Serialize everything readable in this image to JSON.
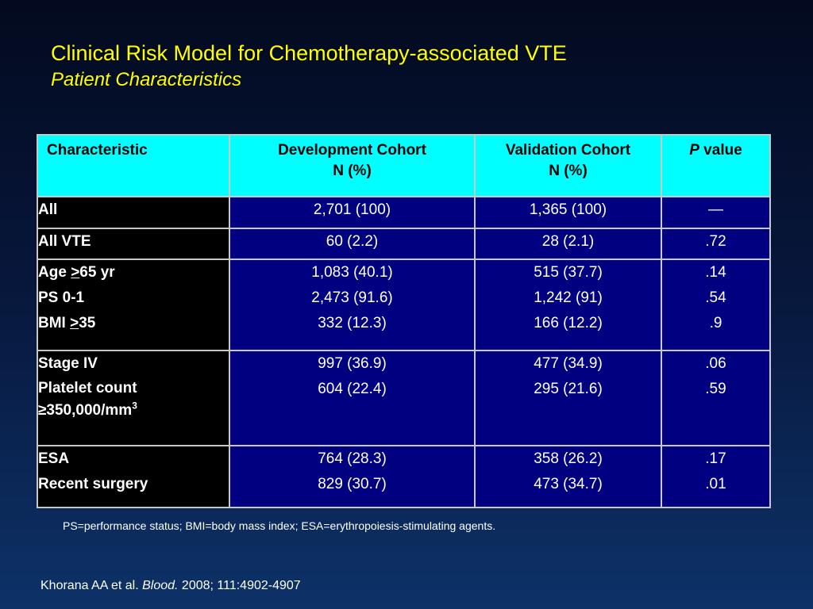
{
  "title": "Clinical Risk Model for Chemotherapy-associated VTE",
  "subtitle": "Patient Characteristics",
  "table": {
    "headers": {
      "characteristic": "Characteristic",
      "dev_line1": "Development Cohort",
      "dev_line2": "N (%)",
      "val_line1": "Validation Cohort",
      "val_line2": "N (%)",
      "p_italic": "P",
      "p_rest": " value"
    },
    "rows": {
      "all": {
        "label": "All",
        "dev": "2,701 (100)",
        "val": "1,365 (100)",
        "p": "—"
      },
      "all_vte": {
        "label": "All VTE",
        "dev": "60 (2.2)",
        "val": "28 (2.1)",
        "p": ".72"
      },
      "age": {
        "label_pre": "Age ",
        "label_sym": ">",
        "label_post": "65 yr",
        "dev": "1,083 (40.1)",
        "val": "515 (37.7)",
        "p": ".14"
      },
      "ps": {
        "label": "PS 0-1",
        "dev": "2,473 (91.6)",
        "val": "1,242 (91)",
        "p": ".54"
      },
      "bmi": {
        "label_pre": "BMI ",
        "label_sym": ">",
        "label_post": "35",
        "dev": "332 (12.3)",
        "val": "166 (12.2)",
        "p": ".9"
      },
      "stage": {
        "label": "Stage IV",
        "dev": "997 (36.9)",
        "val": "477 (34.9)",
        "p": ".06"
      },
      "platelet": {
        "label_line1": "Platelet count",
        "label_line2": "≥350,000/mm",
        "label_sup": "3",
        "dev": "604 (22.4)",
        "val": "295 (21.6)",
        "p": ".59"
      },
      "esa": {
        "label": "ESA",
        "dev": "764 (28.3)",
        "val": "358 (26.2)",
        "p": ".17"
      },
      "surgery": {
        "label": "Recent surgery",
        "dev": "829 (30.7)",
        "val": "473 (34.7)",
        "p": ".01"
      }
    }
  },
  "footnote": "PS=performance status; BMI=body mass index; ESA=erythropoiesis-stimulating agents.",
  "citation": {
    "authors": "Khorana AA et al. ",
    "journal": "Blood.",
    "rest": " 2008; 111:4902-4907"
  },
  "colors": {
    "title": "#ffff00",
    "header_bg": "#00ffff",
    "label_bg": "#000000",
    "value_bg": "#000080",
    "border": "#c8c8c8"
  }
}
